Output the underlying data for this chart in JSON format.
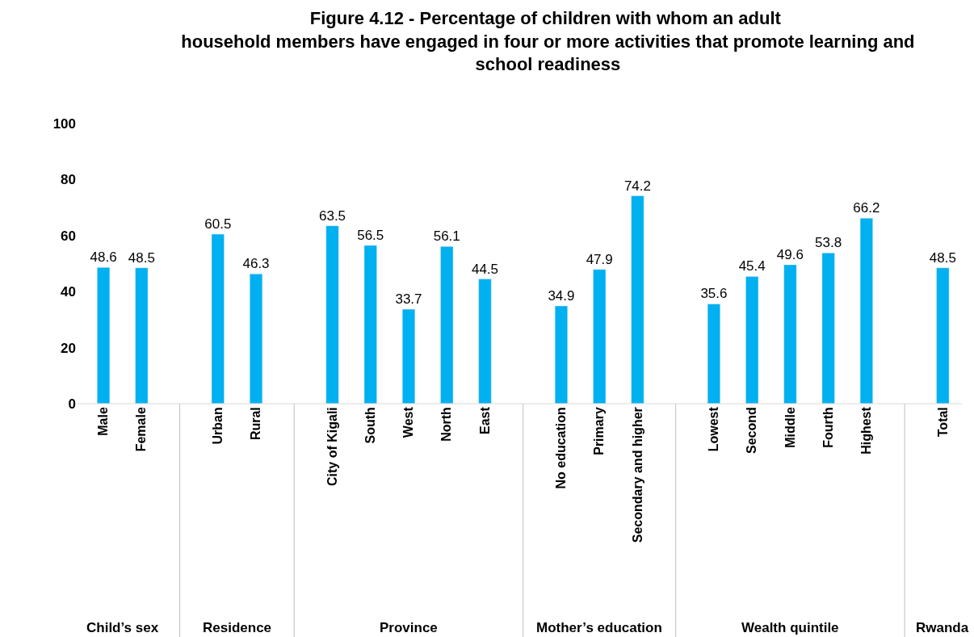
{
  "chart_data": {
    "type": "bar",
    "title": "Figure 4.12 - Percentage of children with whom an adult household members have engaged in four or more activities that promote learning and school readiness",
    "categories": [
      "Male",
      "Female",
      null,
      "Urban",
      "Rural",
      null,
      "City of Kigali",
      "South",
      "West",
      "North",
      "East",
      null,
      "No education",
      "Primary",
      "Secondary and higher",
      null,
      "Lowest",
      "Second",
      "Middle",
      "Fourth",
      "Highest",
      null,
      "Total"
    ],
    "values": [
      48.6,
      48.5,
      null,
      60.5,
      46.3,
      null,
      63.5,
      56.5,
      33.7,
      56.1,
      44.5,
      null,
      34.9,
      47.9,
      74.2,
      null,
      35.6,
      45.4,
      49.6,
      53.8,
      66.2,
      null,
      48.5
    ],
    "color": "#00b0f0",
    "ylim": [
      0,
      100
    ],
    "yticks": [
      0,
      20,
      40,
      60,
      80,
      100
    ],
    "data_labels": true,
    "annotations": [
      "Child’s sex",
      "Residence",
      "Province",
      "Mother’s education",
      "Wealth quintile",
      "Rwanda"
    ]
  }
}
